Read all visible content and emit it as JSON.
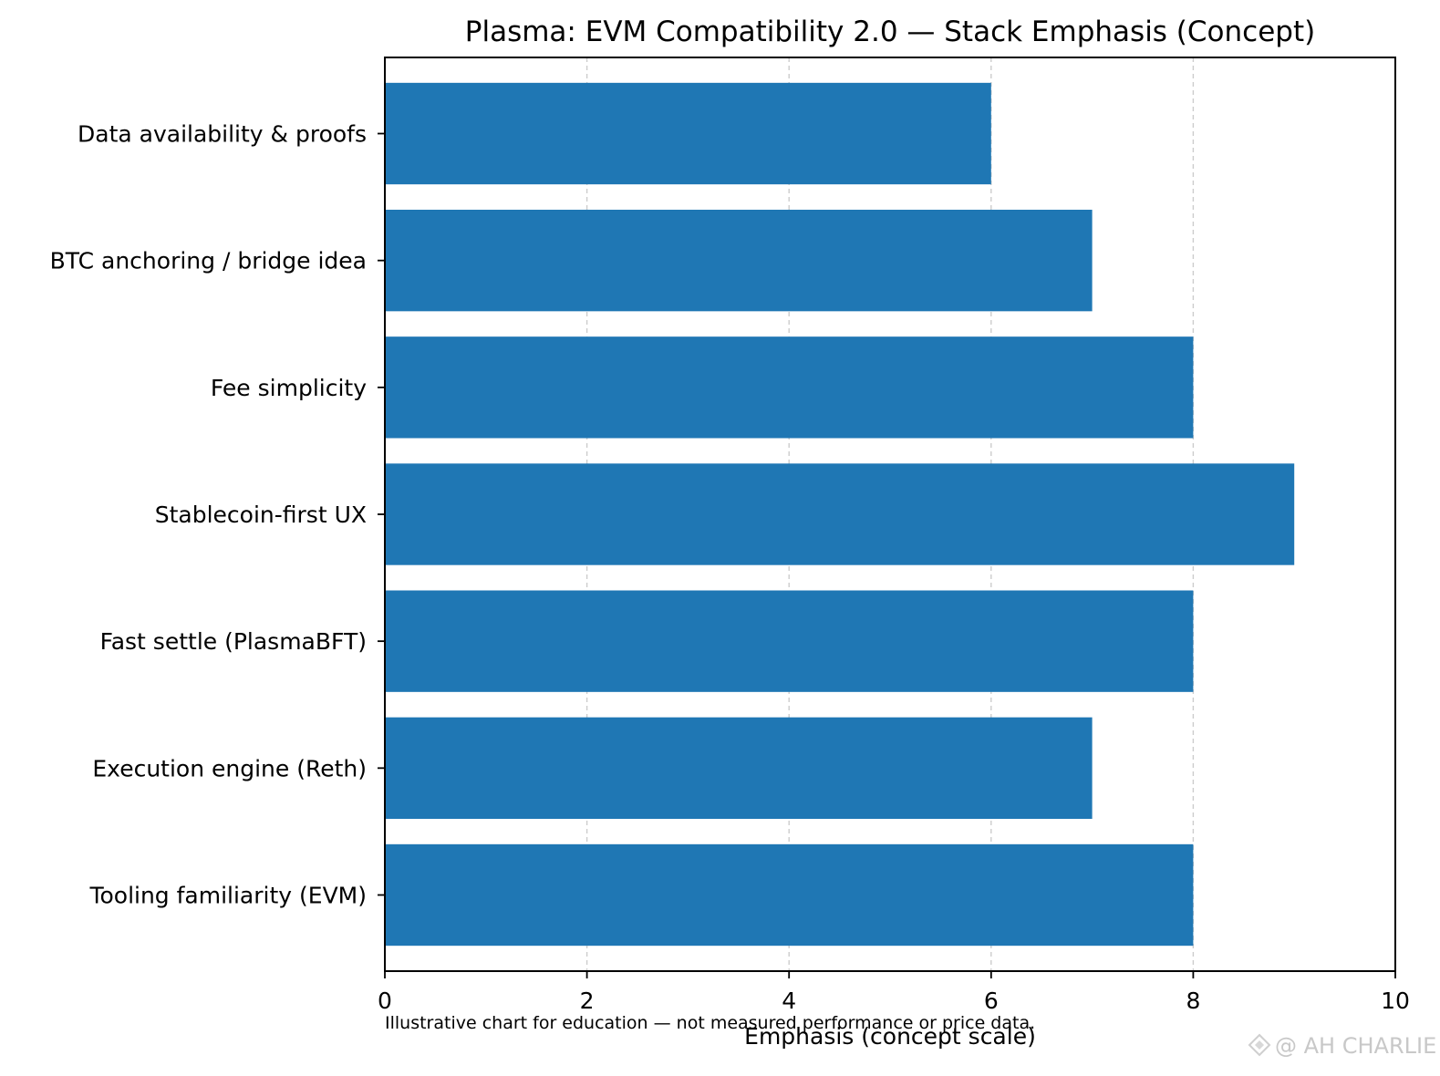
{
  "chart_data": {
    "type": "bar",
    "orientation": "horizontal",
    "title": "Plasma: EVM Compatibility 2.0 — Stack Emphasis (Concept)",
    "xlabel": "Emphasis (concept scale)",
    "ylabel": "",
    "categories": [
      "Tooling familiarity (EVM)",
      "Execution engine (Reth)",
      "Fast settle (PlasmaBFT)",
      "Stablecoin-first UX",
      "Fee simplicity",
      "BTC anchoring / bridge idea",
      "Data availability & proofs"
    ],
    "values": [
      8,
      7,
      8,
      9,
      8,
      7,
      6
    ],
    "xlim": [
      0,
      10
    ],
    "xticks": [
      "0",
      "2",
      "4",
      "6",
      "8",
      "10"
    ],
    "grid": "x-axis dashed",
    "bar_color": "#1f77b4",
    "footnote": "Illustrative chart for education — not measured performance or price data."
  },
  "watermark": {
    "text": "@ AH CHARLIE"
  }
}
